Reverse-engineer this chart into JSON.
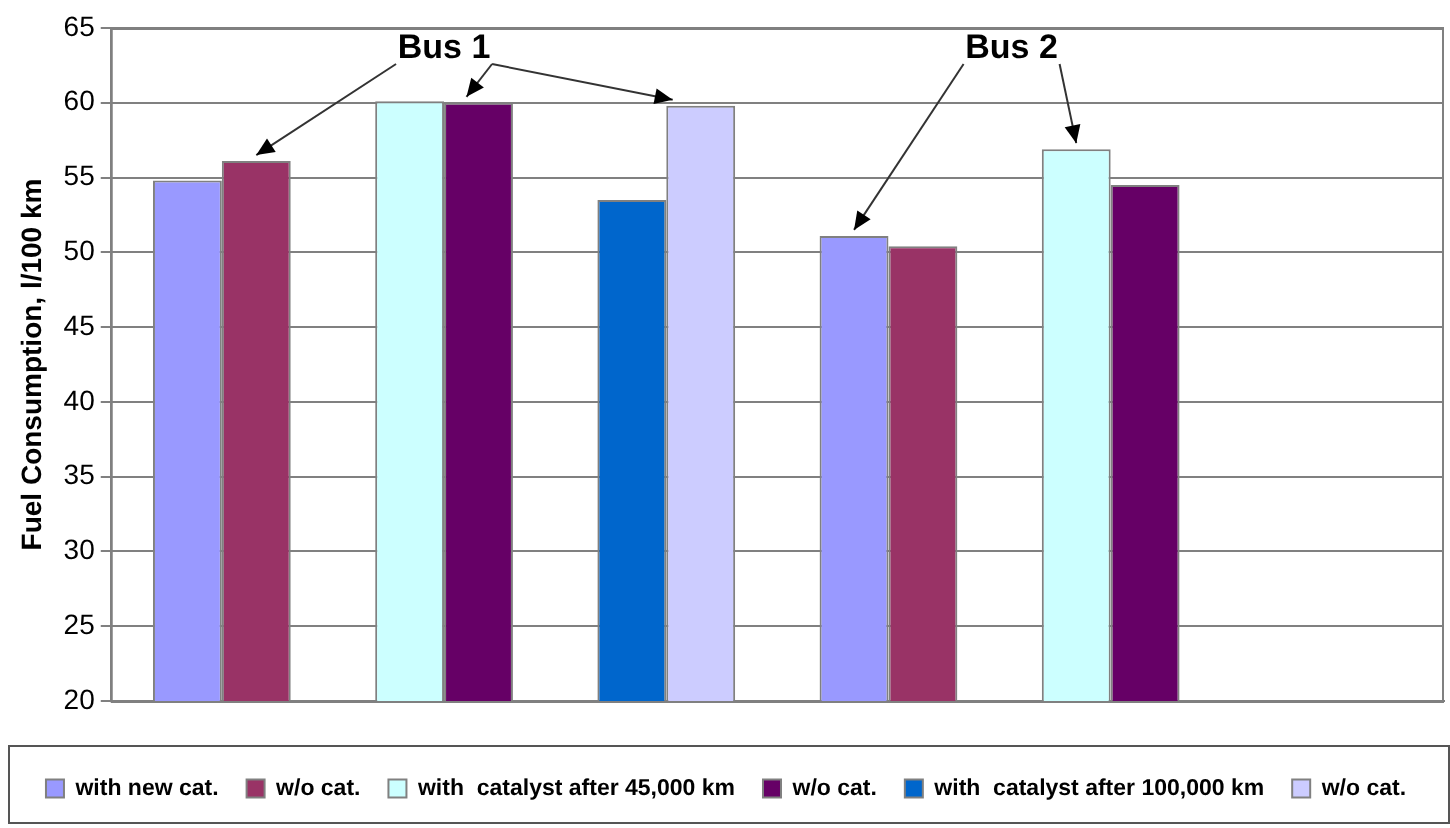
{
  "chart_data": {
    "type": "bar",
    "ylabel": "Fuel Consumption, l/100 km",
    "categories": [
      null,
      null,
      null,
      null,
      null,
      null
    ],
    "series": [
      {
        "name": "with new cat.",
        "color": "#9999ff",
        "values": [
          54.8,
          null,
          null,
          51.1,
          null,
          null
        ]
      },
      {
        "name": "w/o cat.",
        "color": "#993366",
        "values": [
          56.1,
          null,
          null,
          50.4,
          null,
          null
        ]
      },
      {
        "name": "with  catalyst after 45,000 km",
        "color": "#ccffff",
        "values": [
          null,
          60.1,
          null,
          null,
          56.9,
          null
        ]
      },
      {
        "name": "w/o cat.",
        "color": "#660066",
        "values": [
          null,
          60.0,
          null,
          null,
          54.5,
          null
        ]
      },
      {
        "name": "with  catalyst after 100,000 km",
        "color": "#0066cc",
        "values": [
          null,
          null,
          53.5,
          null,
          null,
          null
        ]
      },
      {
        "name": "w/o cat.",
        "color": "#ccccff",
        "values": [
          null,
          null,
          59.8,
          null,
          null,
          null
        ]
      }
    ],
    "ylim": [
      20,
      65
    ],
    "yticks": [
      20,
      25,
      30,
      35,
      40,
      45,
      50,
      55,
      60,
      65
    ],
    "grid": "y",
    "legend": "bottom",
    "annotations": [
      "Bus 1",
      "Bus 2"
    ]
  }
}
